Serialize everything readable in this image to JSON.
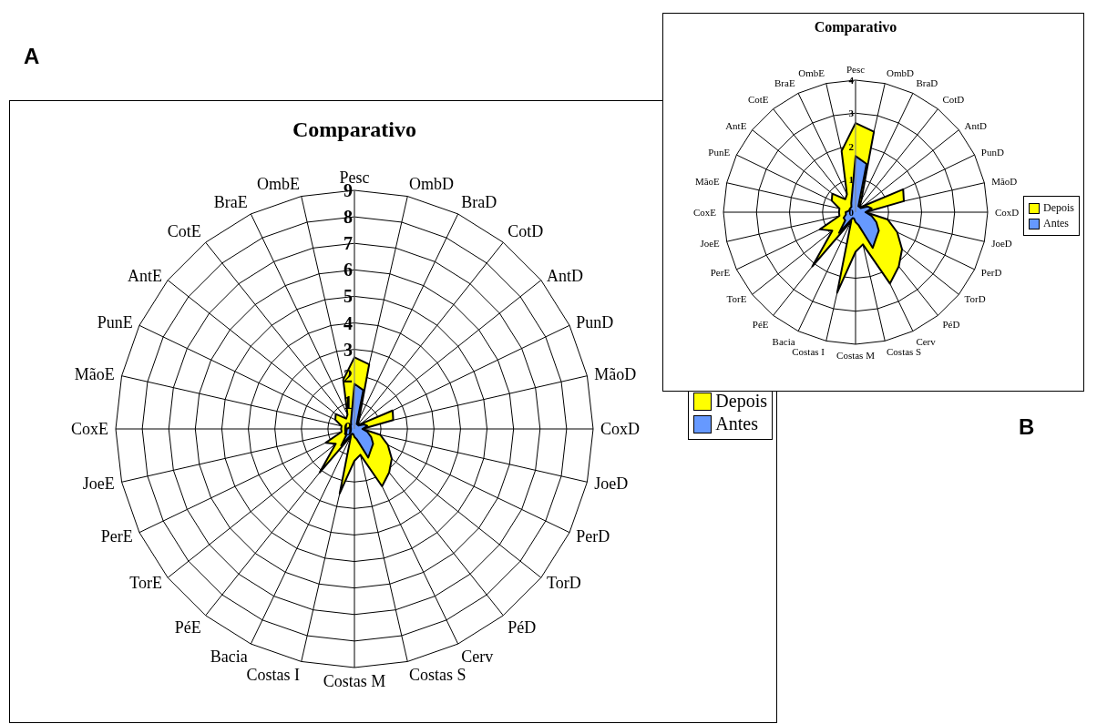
{
  "chart_data": [
    {
      "type": "radar",
      "title": "Comparativo",
      "annotations": [
        "A"
      ],
      "categories": [
        "Pesc",
        "OmbD",
        "BraD",
        "CotD",
        "AntD",
        "PunD",
        "MãoD",
        "CoxD",
        "JoeD",
        "PerD",
        "TorD",
        "PéD",
        "Cerv",
        "Costas S",
        "Costas M",
        "Costas I",
        "Bacia",
        "PéE",
        "TorE",
        "PerE",
        "JoeE",
        "CoxE",
        "MãoE",
        "PunE",
        "AntE",
        "CotE",
        "BraE",
        "OmbE"
      ],
      "series": [
        {
          "name": "Depois",
          "color": "#ffff00",
          "values": [
            2.7,
            2.5,
            0.4,
            0.2,
            0.3,
            1.6,
            1.5,
            0.3,
            1.0,
            1.4,
            1.8,
            2.1,
            2.4,
            1.0,
            1.2,
            2.5,
            0.3,
            2.1,
            0.9,
            1.2,
            0.5,
            0.5,
            0.5,
            0.8,
            0.9,
            0.5,
            0.6,
            1.9
          ]
        },
        {
          "name": "Antes",
          "color": "#6699ff",
          "values": [
            1.7,
            1.5,
            0.2,
            0.2,
            0.2,
            0.4,
            0.5,
            0.3,
            0.5,
            0.7,
            0.9,
            1.0,
            1.2,
            0.4,
            0.3,
            0.2,
            0.2,
            0.8,
            0.4,
            0.4,
            0.3,
            0.3,
            0.2,
            0.2,
            0.2,
            0.2,
            0.3,
            0.5
          ]
        }
      ],
      "ylim": [
        0,
        9
      ],
      "yticks": [
        0,
        1,
        2,
        3,
        4,
        5,
        6,
        7,
        8,
        9
      ],
      "grid": true,
      "legend": "right"
    },
    {
      "type": "radar",
      "title": "Comparativo",
      "annotations": [
        "B"
      ],
      "categories": [
        "Pesc",
        "OmbD",
        "BraD",
        "CotD",
        "AntD",
        "PunD",
        "MãoD",
        "CoxD",
        "JoeD",
        "PerD",
        "TorD",
        "PéD",
        "Cerv",
        "Costas S",
        "Costas M",
        "Costas I",
        "Bacia",
        "PéE",
        "TorE",
        "PerE",
        "JoeE",
        "CoxE",
        "MãoE",
        "PunE",
        "AntE",
        "CotE",
        "BraE",
        "OmbE"
      ],
      "series": [
        {
          "name": "Depois",
          "color": "#ffff00",
          "values": [
            2.7,
            2.5,
            0.4,
            0.2,
            0.3,
            1.6,
            1.5,
            0.3,
            1.0,
            1.4,
            1.8,
            2.1,
            2.4,
            1.0,
            1.2,
            2.5,
            0.3,
            2.1,
            0.9,
            1.2,
            0.5,
            0.5,
            0.5,
            0.8,
            0.9,
            0.5,
            0.6,
            1.9
          ]
        },
        {
          "name": "Antes",
          "color": "#6699ff",
          "values": [
            1.7,
            1.5,
            0.2,
            0.2,
            0.2,
            0.4,
            0.5,
            0.3,
            0.5,
            0.7,
            0.9,
            1.0,
            1.2,
            0.4,
            0.3,
            0.2,
            0.2,
            0.8,
            0.4,
            0.4,
            0.3,
            0.3,
            0.2,
            0.2,
            0.2,
            0.2,
            0.3,
            0.5
          ]
        }
      ],
      "ylim": [
        0,
        4
      ],
      "yticks": [
        0,
        1,
        2,
        3,
        4
      ],
      "grid": true,
      "legend": "right"
    }
  ]
}
